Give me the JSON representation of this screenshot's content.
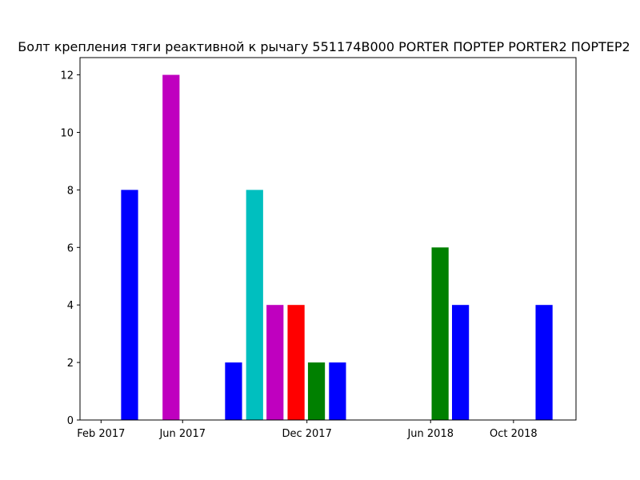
{
  "chart_data": {
    "type": "bar",
    "title": "Болт крепления тяги реактивной к рычагу 551174B000 PORTER ПОРТЕР PORTER2 ПОРТЕР2",
    "xlabel": "",
    "ylabel": "",
    "x_axis": "date",
    "x_tick_labels": [
      "Feb 2017",
      "Jun 2017",
      "Dec 2017",
      "Jun 2018",
      "Oct 2018"
    ],
    "x_tick_dates": [
      "2017-02-01",
      "2017-06-01",
      "2017-12-01",
      "2018-06-01",
      "2018-10-01"
    ],
    "xlim": [
      "2017-01-01",
      "2019-01-01"
    ],
    "y_ticks": [
      0,
      2,
      4,
      6,
      8,
      10,
      12
    ],
    "ylim": [
      0,
      12.6
    ],
    "grid": false,
    "legend": "none",
    "bars": [
      {
        "date": "2017-03-15",
        "value": 8,
        "color": "#0000ff"
      },
      {
        "date": "2017-05-15",
        "value": 12,
        "color": "#bf00bf"
      },
      {
        "date": "2017-08-15",
        "value": 2,
        "color": "#0000ff"
      },
      {
        "date": "2017-09-15",
        "value": 8,
        "color": "#00bfbf"
      },
      {
        "date": "2017-10-15",
        "value": 4,
        "color": "#bf00bf"
      },
      {
        "date": "2017-11-15",
        "value": 4,
        "color": "#ff0000"
      },
      {
        "date": "2017-12-15",
        "value": 2,
        "color": "#008000"
      },
      {
        "date": "2018-01-15",
        "value": 2,
        "color": "#0000ff"
      },
      {
        "date": "2018-06-15",
        "value": 6,
        "color": "#008000"
      },
      {
        "date": "2018-07-15",
        "value": 4,
        "color": "#0000ff"
      },
      {
        "date": "2018-11-15",
        "value": 4,
        "color": "#0000ff"
      }
    ]
  }
}
